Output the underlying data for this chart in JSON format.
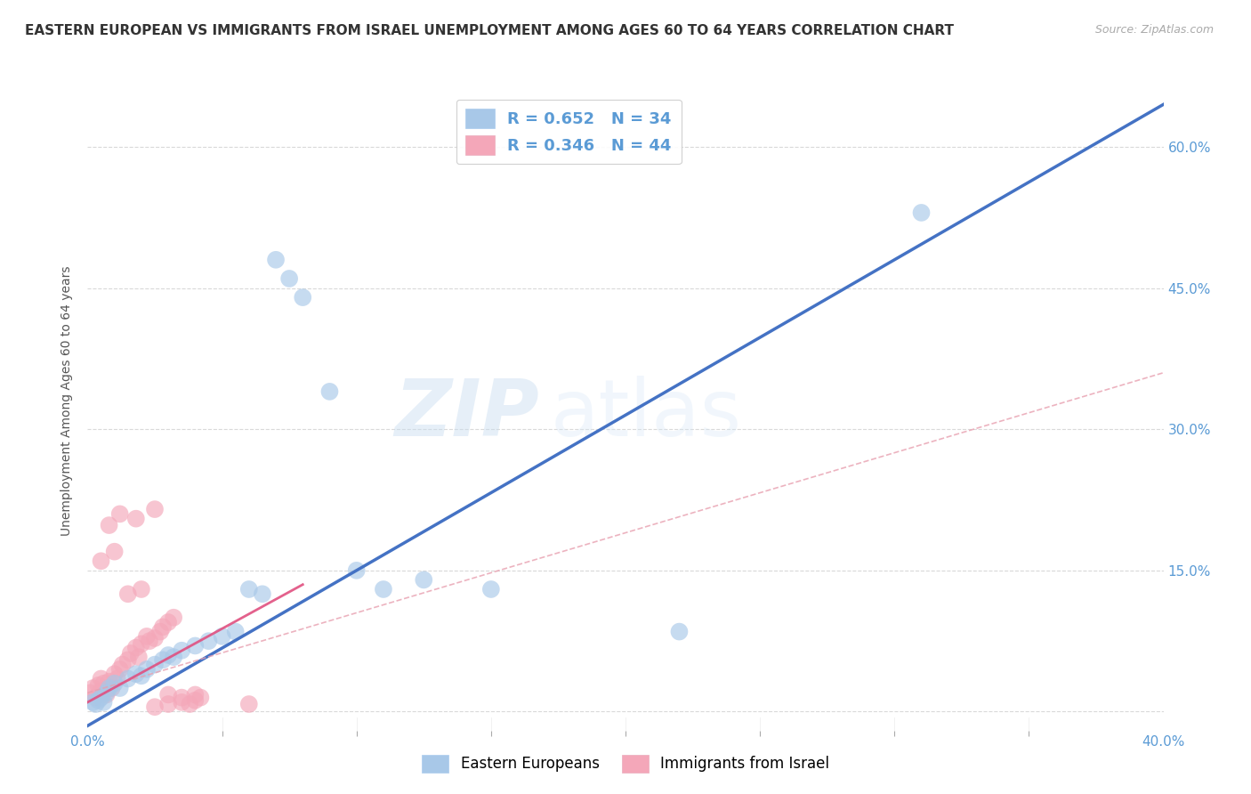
{
  "title": "EASTERN EUROPEAN VS IMMIGRANTS FROM ISRAEL UNEMPLOYMENT AMONG AGES 60 TO 64 YEARS CORRELATION CHART",
  "source": "Source: ZipAtlas.com",
  "ylabel_label": "Unemployment Among Ages 60 to 64 years",
  "xlim": [
    0.0,
    0.4
  ],
  "ylim": [
    -0.02,
    0.68
  ],
  "yticks": [
    0.0,
    0.15,
    0.3,
    0.45,
    0.6
  ],
  "ytick_labels": [
    "",
    "15.0%",
    "30.0%",
    "45.0%",
    "60.0%"
  ],
  "blue_color": "#a8c8e8",
  "blue_line_color": "#4472c4",
  "pink_color": "#f4a7b9",
  "pink_line_color": "#e05080",
  "pink_dash_color": "#e8a0b0",
  "watermark_zip": "ZIP",
  "watermark_atlas": "atlas",
  "legend_label_blue": "Eastern Europeans",
  "legend_label_pink": "Immigrants from Israel",
  "blue_scatter_x": [
    0.002,
    0.003,
    0.004,
    0.005,
    0.006,
    0.007,
    0.008,
    0.01,
    0.012,
    0.015,
    0.018,
    0.02,
    0.022,
    0.025,
    0.028,
    0.03,
    0.032,
    0.035,
    0.04,
    0.045,
    0.05,
    0.055,
    0.06,
    0.065,
    0.07,
    0.075,
    0.08,
    0.09,
    0.1,
    0.11,
    0.125,
    0.15,
    0.22,
    0.31
  ],
  "blue_scatter_y": [
    0.01,
    0.008,
    0.012,
    0.015,
    0.01,
    0.02,
    0.025,
    0.03,
    0.025,
    0.035,
    0.04,
    0.038,
    0.045,
    0.05,
    0.055,
    0.06,
    0.058,
    0.065,
    0.07,
    0.075,
    0.08,
    0.085,
    0.13,
    0.125,
    0.48,
    0.46,
    0.44,
    0.34,
    0.15,
    0.13,
    0.14,
    0.13,
    0.085,
    0.53
  ],
  "pink_scatter_x": [
    0.001,
    0.002,
    0.003,
    0.004,
    0.005,
    0.005,
    0.006,
    0.007,
    0.008,
    0.009,
    0.01,
    0.011,
    0.012,
    0.013,
    0.015,
    0.016,
    0.018,
    0.019,
    0.02,
    0.022,
    0.023,
    0.025,
    0.027,
    0.028,
    0.03,
    0.032,
    0.035,
    0.038,
    0.04,
    0.042,
    0.005,
    0.01,
    0.015,
    0.02,
    0.025,
    0.025,
    0.03,
    0.03,
    0.035,
    0.04,
    0.008,
    0.012,
    0.018,
    0.06
  ],
  "pink_scatter_y": [
    0.02,
    0.025,
    0.015,
    0.028,
    0.022,
    0.035,
    0.03,
    0.018,
    0.032,
    0.025,
    0.04,
    0.035,
    0.045,
    0.05,
    0.055,
    0.062,
    0.068,
    0.058,
    0.072,
    0.08,
    0.075,
    0.078,
    0.085,
    0.09,
    0.095,
    0.1,
    0.01,
    0.008,
    0.012,
    0.015,
    0.16,
    0.17,
    0.125,
    0.13,
    0.215,
    0.005,
    0.018,
    0.008,
    0.015,
    0.018,
    0.198,
    0.21,
    0.205,
    0.008
  ],
  "blue_line_x": [
    0.0,
    0.4
  ],
  "blue_line_y": [
    -0.015,
    0.645
  ],
  "pink_dash_line_x": [
    0.0,
    0.4
  ],
  "pink_dash_line_y": [
    0.02,
    0.36
  ],
  "pink_solid_line_x": [
    0.0,
    0.08
  ],
  "pink_solid_line_y": [
    0.01,
    0.135
  ],
  "bg_color": "#ffffff",
  "grid_color": "#d0d0d0",
  "tick_color": "#5b9bd5",
  "title_fontsize": 11,
  "source_fontsize": 9,
  "axis_label_fontsize": 10,
  "tick_fontsize": 11,
  "legend_fontsize": 13
}
